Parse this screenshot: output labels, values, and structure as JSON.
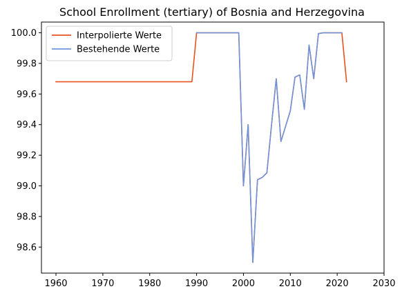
{
  "chart_data": {
    "type": "line",
    "title": "School Enrollment (tertiary) of Bosnia and Herzegovina",
    "xlabel": "",
    "ylabel": "",
    "xlim": [
      1956.9,
      2030
    ],
    "ylim": [
      98.43,
      100.07
    ],
    "x_ticks": [
      1960,
      1970,
      1980,
      1990,
      2000,
      2010,
      2020,
      2030
    ],
    "y_ticks": [
      98.6,
      98.8,
      99.0,
      99.2,
      99.4,
      99.6,
      99.8,
      100.0
    ],
    "grid": false,
    "legend_position": "top-left",
    "series": [
      {
        "name": "Interpolierte Werte",
        "color": "#e8501c",
        "x": [
          1960,
          1989,
          1990,
          1999,
          2000,
          2001,
          2002,
          2003,
          2004,
          2005,
          2006,
          2007,
          2008,
          2009,
          2010,
          2011,
          2012,
          2013,
          2014,
          2015,
          2016,
          2017,
          2018,
          2019,
          2020,
          2021,
          2022
        ],
        "y": [
          99.68,
          99.68,
          100.0,
          100.0,
          99.0,
          99.4,
          98.5,
          99.04,
          99.055,
          99.085,
          99.4,
          99.7,
          99.29,
          99.39,
          99.49,
          99.71,
          99.725,
          99.5,
          99.92,
          99.7,
          99.995,
          100.0,
          100.0,
          100.0,
          100.0,
          100.0,
          99.68
        ]
      },
      {
        "name": "Bestehende Werte",
        "color": "#6f94dc",
        "x": [
          1990,
          1999,
          2000,
          2001,
          2002,
          2003,
          2004,
          2005,
          2006,
          2007,
          2008,
          2009,
          2010,
          2011,
          2012,
          2013,
          2014,
          2015,
          2016,
          2017,
          2018,
          2019,
          2020,
          2021
        ],
        "y": [
          100.0,
          100.0,
          99.0,
          99.4,
          98.5,
          99.04,
          99.055,
          99.085,
          99.4,
          99.7,
          99.29,
          99.39,
          99.49,
          99.71,
          99.725,
          99.5,
          99.92,
          99.7,
          99.995,
          100.0,
          100.0,
          100.0,
          100.0,
          100.0
        ]
      }
    ]
  }
}
